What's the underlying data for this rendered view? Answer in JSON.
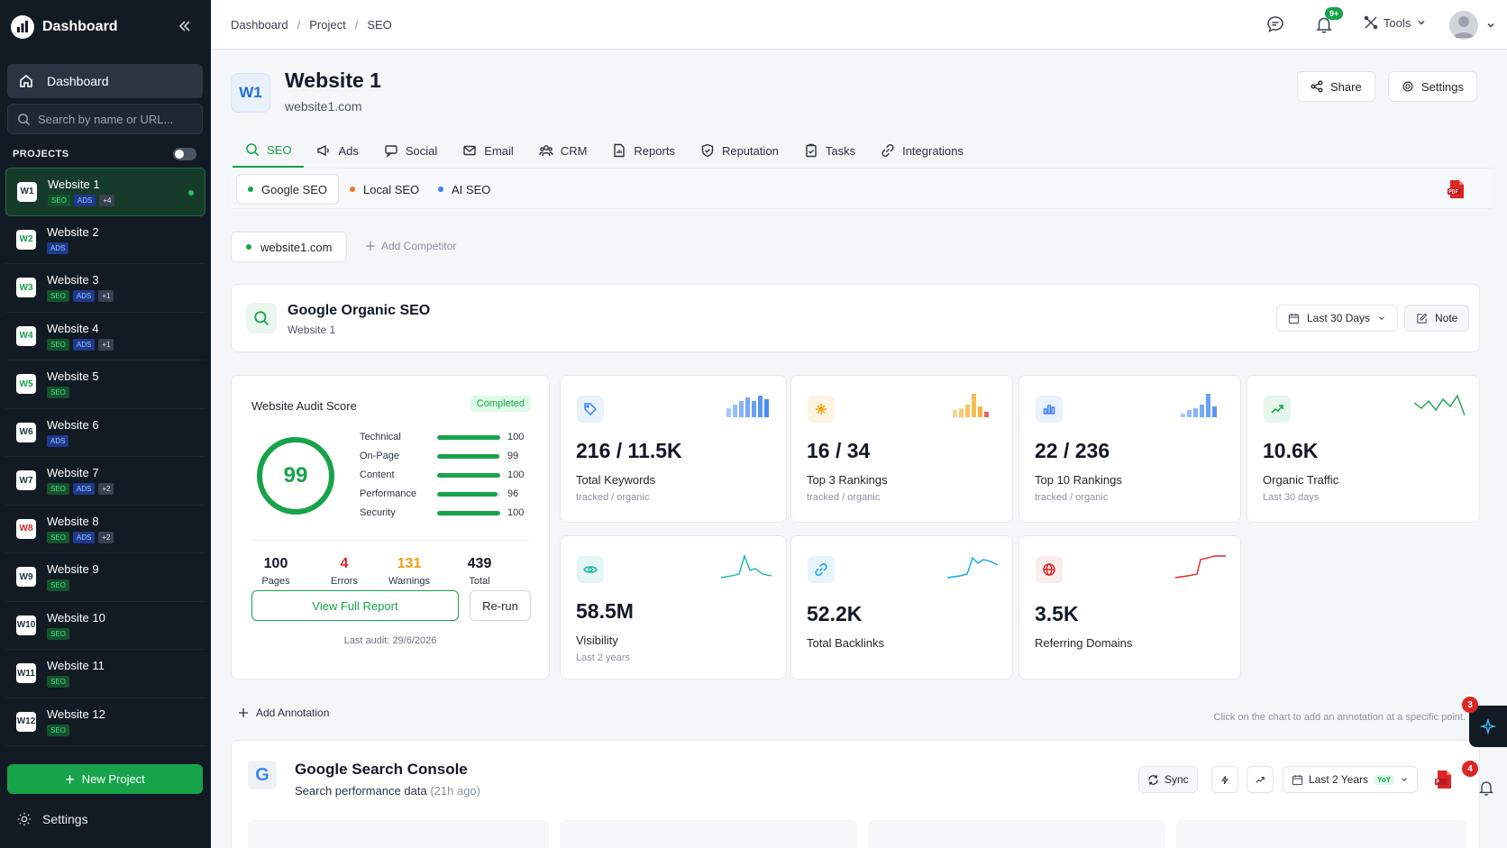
{
  "sidebar": {
    "title": "Dashboard",
    "nav_dashboard": "Dashboard",
    "search_placeholder": "Search by name or URL...",
    "projects_label": "PROJECTS",
    "projects": [
      {
        "badge": "W1",
        "name": "Website 1",
        "tags": [
          "SEO",
          "ADS"
        ],
        "more": "+4",
        "badge_color": "#2b3440"
      },
      {
        "badge": "W2",
        "name": "Website 2",
        "tags": [
          "ADS"
        ],
        "more": "",
        "badge_color": "#16a34a"
      },
      {
        "badge": "W3",
        "name": "Website 3",
        "tags": [
          "SEO",
          "ADS"
        ],
        "more": "+1",
        "badge_color": "#16a34a"
      },
      {
        "badge": "W4",
        "name": "Website 4",
        "tags": [
          "SEO",
          "ADS"
        ],
        "more": "+1",
        "badge_color": "#16a34a"
      },
      {
        "badge": "W5",
        "name": "Website 5",
        "tags": [
          "SEO"
        ],
        "more": "",
        "badge_color": "#16a34a"
      },
      {
        "badge": "W6",
        "name": "Website 6",
        "tags": [
          "ADS"
        ],
        "more": "",
        "badge_color": "#2b3440"
      },
      {
        "badge": "W7",
        "name": "Website 7",
        "tags": [
          "SEO",
          "ADS"
        ],
        "more": "+2",
        "badge_color": "#2b3440"
      },
      {
        "badge": "W8",
        "name": "Website 8",
        "tags": [
          "SEO",
          "ADS"
        ],
        "more": "+2",
        "badge_color": "#dc2626"
      },
      {
        "badge": "W9",
        "name": "Website 9",
        "tags": [
          "SEO"
        ],
        "more": "",
        "badge_color": "#2b3440"
      },
      {
        "badge": "W10",
        "name": "Website 10",
        "tags": [
          "SEO"
        ],
        "more": "",
        "badge_color": "#2b3440"
      },
      {
        "badge": "W11",
        "name": "Website 11",
        "tags": [
          "SEO"
        ],
        "more": "",
        "badge_color": "#2b3440"
      },
      {
        "badge": "W12",
        "name": "Website 12",
        "tags": [
          "SEO"
        ],
        "more": "",
        "badge_color": "#2b3440"
      }
    ],
    "new_project": "New Project",
    "settings": "Settings"
  },
  "topbar": {
    "breadcrumb": [
      "Dashboard",
      "Project",
      "SEO"
    ],
    "notif_count": "9+",
    "tools": "Tools"
  },
  "header": {
    "badge": "W1",
    "title": "Website 1",
    "url": "website1.com",
    "share": "Share",
    "settings": "Settings"
  },
  "tabs": [
    "SEO",
    "Ads",
    "Social",
    "Email",
    "CRM",
    "Reports",
    "Reputation",
    "Tasks",
    "Integrations"
  ],
  "subtabs": [
    {
      "label": "Google SEO",
      "color": "#16a34a"
    },
    {
      "label": "Local SEO",
      "color": "#f97316"
    },
    {
      "label": "AI SEO",
      "color": "#3b82f6"
    }
  ],
  "competitors": {
    "site": "website1.com",
    "add": "Add Competitor"
  },
  "organic": {
    "title": "Google Organic SEO",
    "subtitle": "Website 1",
    "range": "Last 30 Days",
    "note": "Note"
  },
  "audit": {
    "title": "Website Audit Score",
    "status": "Completed",
    "score": "99",
    "score_fraction": 0.99,
    "metrics": [
      {
        "label": "Technical",
        "value": "100",
        "fraction": 1.0
      },
      {
        "label": "On-Page",
        "value": "99",
        "fraction": 0.99
      },
      {
        "label": "Content",
        "value": "100",
        "fraction": 1.0
      },
      {
        "label": "Performance",
        "value": "96",
        "fraction": 0.96
      },
      {
        "label": "Security",
        "value": "100",
        "fraction": 1.0
      }
    ],
    "stats": [
      {
        "value": "100",
        "label": "Pages",
        "color": "#111827"
      },
      {
        "value": "4",
        "label": "Errors",
        "color": "#dc2626"
      },
      {
        "value": "131",
        "label": "Warnings",
        "color": "#f59e0b"
      },
      {
        "value": "439",
        "label": "Total",
        "color": "#111827"
      }
    ],
    "view_report": "View Full Report",
    "rerun": "Re-run",
    "last_audit": "Last audit: 29/6/2026"
  },
  "kpis": [
    {
      "value": "216 / 11.5K",
      "label": "Total Keywords",
      "sub": "tracked / organic",
      "icon": "tag-icon",
      "color": "#3b82f6"
    },
    {
      "value": "16 / 34",
      "label": "Top 3 Rankings",
      "sub": "tracked / organic",
      "icon": "sparkle-icon",
      "color": "#f59e0b"
    },
    {
      "value": "22 / 236",
      "label": "Top 10 Rankings",
      "sub": "tracked / organic",
      "icon": "bar-chart-icon",
      "color": "#3b82f6"
    },
    {
      "value": "10.6K",
      "label": "Organic Traffic",
      "sub": "Last 30 days",
      "icon": "trend-up-icon",
      "color": "#16a34a"
    },
    {
      "value": "58.5M",
      "label": "Visibility",
      "sub": "Last 2 years",
      "icon": "eye-icon",
      "color": "#14b8a6"
    },
    {
      "value": "52.2K",
      "label": "Total Backlinks",
      "sub": "",
      "icon": "link-icon",
      "color": "#0ea5e9"
    },
    {
      "value": "3.5K",
      "label": "Referring Domains",
      "sub": "",
      "icon": "globe-icon",
      "color": "#dc2626"
    }
  ],
  "annotation": {
    "add": "Add Annotation",
    "hint": "Click on the chart to add an annotation at a specific point."
  },
  "gsc": {
    "title": "Google Search Console",
    "subtitle": "Search performance data",
    "ago": "(21h ago)",
    "sync": "Sync",
    "range": "Last 2 Years",
    "yoy": "YoY"
  },
  "floating": {
    "ai_badge": "3",
    "bell_badge": "4"
  }
}
